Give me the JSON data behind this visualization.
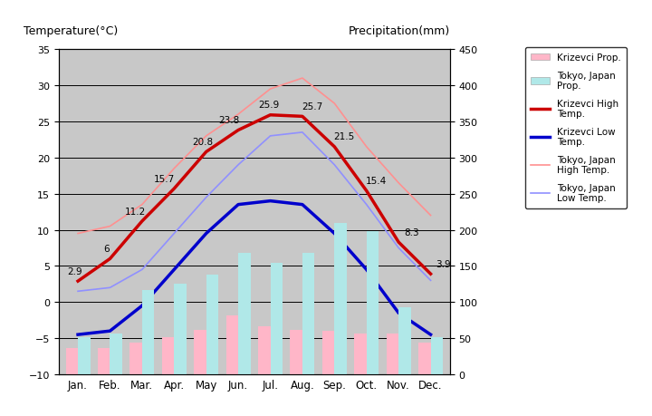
{
  "months": [
    "Jan.",
    "Feb.",
    "Mar.",
    "Apr.",
    "May",
    "Jun.",
    "Jul.",
    "Aug.",
    "Sep.",
    "Oct.",
    "Nov.",
    "Dec."
  ],
  "krizevci_high": [
    2.9,
    6.0,
    11.2,
    15.7,
    20.8,
    23.8,
    25.9,
    25.7,
    21.5,
    15.4,
    8.3,
    3.9
  ],
  "krizevci_low": [
    -4.5,
    -4.0,
    -0.5,
    4.5,
    9.5,
    13.5,
    14.0,
    13.5,
    9.5,
    4.5,
    -1.5,
    -4.5
  ],
  "tokyo_high": [
    9.5,
    10.5,
    13.5,
    18.5,
    23.0,
    26.0,
    29.5,
    31.0,
    27.5,
    21.5,
    16.5,
    12.0
  ],
  "tokyo_low": [
    1.5,
    2.0,
    4.5,
    9.5,
    14.5,
    19.0,
    23.0,
    23.5,
    19.0,
    13.5,
    7.5,
    3.0
  ],
  "krizevci_precip_mm": [
    36,
    36,
    44,
    52,
    62,
    82,
    66,
    62,
    60,
    57,
    56,
    44
  ],
  "tokyo_precip_mm": [
    52,
    56,
    117,
    125,
    138,
    168,
    154,
    168,
    210,
    198,
    93,
    51
  ],
  "title_left": "Temperature(°C)",
  "title_right": "Precipitation(mm)",
  "temp_ylim": [
    -10,
    35
  ],
  "precip_ylim": [
    0,
    450
  ],
  "temp_yticks": [
    -10,
    -5,
    0,
    5,
    10,
    15,
    20,
    25,
    30,
    35
  ],
  "precip_yticks": [
    0,
    50,
    100,
    150,
    200,
    250,
    300,
    350,
    400,
    450
  ],
  "background_color": "#c8c8c8",
  "krizevci_high_color": "#cc0000",
  "krizevci_low_color": "#0000cc",
  "tokyo_high_color": "#ff9090",
  "tokyo_low_color": "#9090ff",
  "krizevci_precip_color": "#ffb6c8",
  "tokyo_precip_color": "#b0e8e8",
  "kh_labels": [
    2.9,
    6,
    11.2,
    15.7,
    20.8,
    23.8,
    25.9,
    25.7,
    21.5,
    15.4,
    8.3,
    3.9
  ],
  "legend_labels": [
    "Krizevci Prop.",
    "Tokyo, Japan\nProp.",
    "Krizevci High\nTemp.",
    "Krizevci Low\nTemp.",
    "Tokyo, Japan\nHigh Temp.",
    "Tokyo, Japan\nLow Temp."
  ]
}
